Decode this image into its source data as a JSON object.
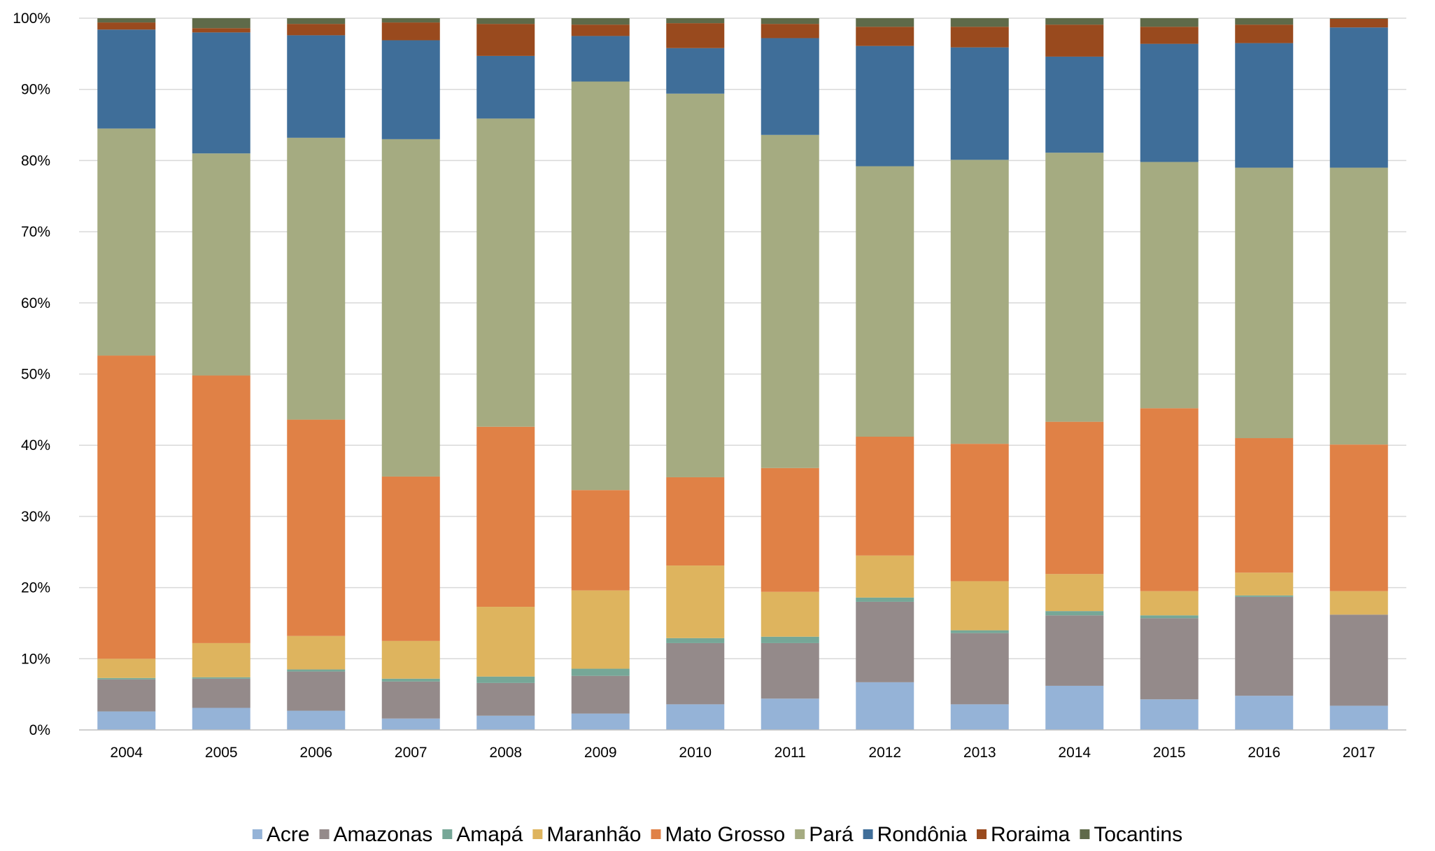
{
  "chart_data": {
    "type": "bar",
    "stacked": true,
    "percent_stacked": true,
    "title": "",
    "xlabel": "",
    "ylabel": "",
    "ylim": [
      0,
      100
    ],
    "y_ticks": [
      {
        "value": 0,
        "label": "0%"
      },
      {
        "value": 10,
        "label": "10%"
      },
      {
        "value": 20,
        "label": "20%"
      },
      {
        "value": 30,
        "label": "30%"
      },
      {
        "value": 40,
        "label": "40%"
      },
      {
        "value": 50,
        "label": "50%"
      },
      {
        "value": 60,
        "label": "60%"
      },
      {
        "value": 70,
        "label": "70%"
      },
      {
        "value": 80,
        "label": "80%"
      },
      {
        "value": 90,
        "label": "90%"
      },
      {
        "value": 100,
        "label": "100%"
      }
    ],
    "grid": true,
    "legend_position": "bottom",
    "categories": [
      "2004",
      "2005",
      "2006",
      "2007",
      "2008",
      "2009",
      "2010",
      "2011",
      "2012",
      "2013",
      "2014",
      "2015",
      "2016",
      "2017"
    ],
    "series": [
      {
        "name": "Acre",
        "color": "#95b3d7",
        "values": [
          2.6,
          3.1,
          2.7,
          1.6,
          2.0,
          2.3,
          3.6,
          4.4,
          6.7,
          3.6,
          6.2,
          4.3,
          4.8,
          3.4
        ]
      },
      {
        "name": "Amazonas",
        "color": "#948a8a",
        "values": [
          4.5,
          4.1,
          5.5,
          5.2,
          4.6,
          5.3,
          8.6,
          7.8,
          11.3,
          10.0,
          9.9,
          11.4,
          13.9,
          12.8
        ]
      },
      {
        "name": "Amapá",
        "color": "#76a797",
        "values": [
          0.2,
          0.2,
          0.3,
          0.4,
          0.9,
          1.0,
          0.7,
          0.9,
          0.6,
          0.4,
          0.6,
          0.4,
          0.2,
          0.0
        ]
      },
      {
        "name": "Maranhão",
        "color": "#deb45e",
        "values": [
          2.7,
          4.8,
          4.7,
          5.3,
          9.8,
          11.0,
          10.2,
          6.3,
          5.9,
          6.9,
          5.2,
          3.4,
          3.2,
          3.3
        ]
      },
      {
        "name": "Mato Grosso",
        "color": "#e08146",
        "values": [
          42.6,
          37.6,
          30.4,
          23.1,
          25.3,
          14.1,
          12.4,
          17.4,
          16.7,
          19.3,
          21.4,
          25.7,
          18.9,
          20.6
        ]
      },
      {
        "name": "Pará",
        "color": "#a5ab81",
        "values": [
          31.9,
          31.2,
          39.6,
          47.4,
          43.3,
          57.4,
          53.9,
          46.8,
          38.0,
          39.9,
          37.8,
          34.6,
          38.0,
          38.9
        ]
      },
      {
        "name": "Rondônia",
        "color": "#3f6e99",
        "values": [
          13.9,
          17.0,
          14.4,
          13.9,
          8.8,
          6.4,
          6.4,
          13.6,
          16.9,
          15.8,
          13.5,
          16.6,
          17.5,
          19.7
        ]
      },
      {
        "name": "Roraima",
        "color": "#994a1e",
        "values": [
          1.0,
          0.6,
          1.6,
          2.5,
          4.5,
          1.6,
          3.5,
          2.0,
          2.7,
          2.9,
          4.5,
          2.4,
          2.6,
          1.2
        ]
      },
      {
        "name": "Tocantins",
        "color": "#5f6a49",
        "values": [
          0.6,
          1.4,
          0.8,
          0.6,
          0.8,
          0.9,
          0.7,
          0.8,
          1.2,
          1.2,
          0.9,
          1.2,
          0.9,
          0.1
        ]
      }
    ]
  }
}
